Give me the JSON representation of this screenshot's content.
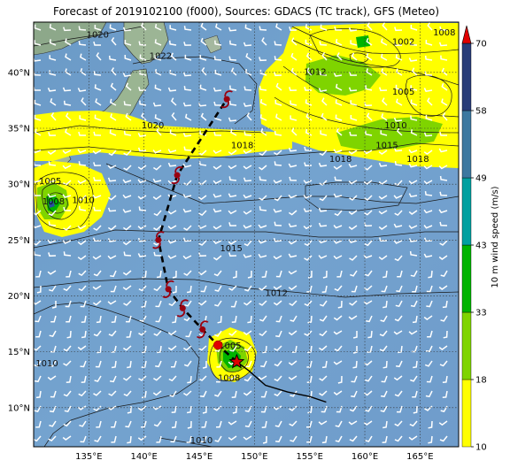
{
  "title": "Forecast of 2019102100 (f000), Sources: GDACS (TC track), GFS (Meteo)",
  "map": {
    "lon_ticks": [
      "135°E",
      "140°E",
      "145°E",
      "150°E",
      "155°E",
      "160°E",
      "165°E"
    ],
    "lat_ticks": [
      "10°N",
      "15°N",
      "20°N",
      "25°N",
      "30°N",
      "35°N",
      "40°N"
    ],
    "lon_range": [
      130,
      168.5
    ],
    "lat_range": [
      6.5,
      44.5
    ],
    "grid": true,
    "pressure_labels": [
      {
        "text": "1020",
        "lon": 135.8,
        "lat": 43.1
      },
      {
        "text": "1022",
        "lon": 141.5,
        "lat": 41.2
      },
      {
        "text": "1020",
        "lon": 140.8,
        "lat": 35.0
      },
      {
        "text": "1018",
        "lon": 148.9,
        "lat": 33.2
      },
      {
        "text": "1015",
        "lon": 147.9,
        "lat": 24.0
      },
      {
        "text": "1012",
        "lon": 152.0,
        "lat": 20.0
      },
      {
        "text": "1005",
        "lon": 131.5,
        "lat": 30.0
      },
      {
        "text": "1008",
        "lon": 131.8,
        "lat": 28.2
      },
      {
        "text": "1010",
        "lon": 134.5,
        "lat": 28.3
      },
      {
        "text": "1018",
        "lon": 157.8,
        "lat": 32.0
      },
      {
        "text": "1018",
        "lon": 164.8,
        "lat": 32.0
      },
      {
        "text": "1002",
        "lon": 163.5,
        "lat": 42.5
      },
      {
        "text": "1008",
        "lon": 167.2,
        "lat": 43.3
      },
      {
        "text": "1012",
        "lon": 155.5,
        "lat": 39.8
      },
      {
        "text": "1005",
        "lon": 163.5,
        "lat": 38.0
      },
      {
        "text": "1010",
        "lon": 162.8,
        "lat": 35.0
      },
      {
        "text": "1015",
        "lon": 162.0,
        "lat": 33.2
      },
      {
        "text": "1005",
        "lon": 147.8,
        "lat": 15.3
      },
      {
        "text": "1008",
        "lon": 147.7,
        "lat": 12.4
      },
      {
        "text": "1010",
        "lon": 131.2,
        "lat": 13.7
      },
      {
        "text": "1010",
        "lon": 145.2,
        "lat": 6.8
      }
    ]
  },
  "storm_track": {
    "past": [
      [
        148.4,
        14.1
      ],
      [
        149.5,
        13.3
      ],
      [
        151.0,
        12.0
      ],
      [
        153.0,
        11.4
      ],
      [
        155.0,
        11.0
      ],
      [
        156.5,
        10.5
      ]
    ],
    "forecast": [
      [
        148.4,
        14.1
      ],
      [
        146.7,
        15.6
      ],
      [
        145.3,
        17.0
      ],
      [
        143.5,
        18.9
      ],
      [
        142.2,
        20.6
      ],
      [
        141.3,
        25.0
      ],
      [
        143.0,
        30.8
      ],
      [
        147.5,
        37.6
      ]
    ],
    "symbols": [
      {
        "lon": 146.7,
        "lat": 15.6,
        "kind": "dot"
      },
      {
        "lon": 145.3,
        "lat": 17.0,
        "kind": "storm"
      },
      {
        "lon": 143.5,
        "lat": 18.9,
        "kind": "storm"
      },
      {
        "lon": 142.2,
        "lat": 20.6,
        "kind": "storm"
      },
      {
        "lon": 141.3,
        "lat": 25.0,
        "kind": "storm"
      },
      {
        "lon": 143.0,
        "lat": 30.8,
        "kind": "storm"
      },
      {
        "lon": 147.5,
        "lat": 37.6,
        "kind": "storm"
      }
    ],
    "current_position": {
      "lon": 148.4,
      "lat": 14.1
    }
  },
  "colorbar": {
    "label": "10 m wind speed (m/s)",
    "ticks": [
      "10",
      "18",
      "33",
      "43",
      "49",
      "58",
      "70"
    ],
    "colors": [
      "#ffff00",
      "#7fd400",
      "#00b400",
      "#00a0a0",
      "#3c78a0",
      "#283c78"
    ],
    "extend_color": "#e00000"
  }
}
